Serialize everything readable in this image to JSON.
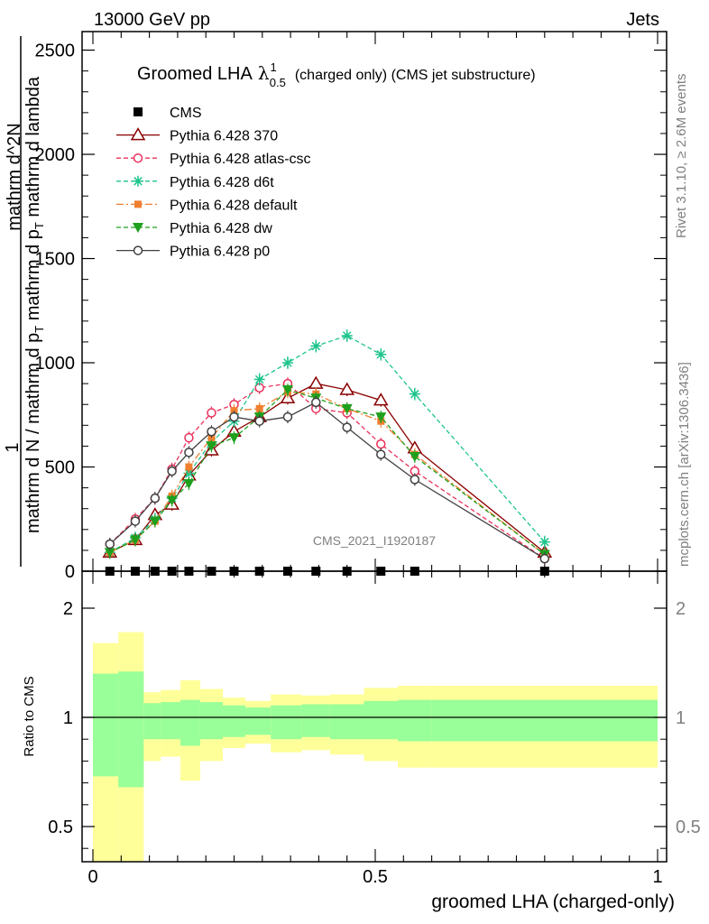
{
  "header": {
    "left": "13000 GeV pp",
    "right": "Jets"
  },
  "title": {
    "main": "Groomed LHA",
    "sup": "1",
    "sub": "0.5",
    "tail": "(charged only) (CMS jet substructure)"
  },
  "ylabel_main": {
    "lines": [
      "mathrm d N / mathrm d p_T mathrm d lambda",
      "mathrm d^2 N",
      "1"
    ],
    "text1": "mathrm d N / mathrm d p",
    "sub1": "T",
    "text2": " mathrm d p",
    "sub2": "T",
    "text3": " mathrm d lambda",
    "num": "mathrm d^2N",
    "one": "1"
  },
  "side_labels": {
    "rivet": "Rivet 3.1.10, ≥ 2.6M events",
    "mcplots": "mcplots.cern.ch [arXiv:1306.3436]"
  },
  "watermark": "CMS_2021_I1920187",
  "ratio": {
    "ylabel": "Ratio to CMS",
    "ticks": [
      "0.5",
      "1",
      "2"
    ]
  },
  "xlabel": "groomed LHA (charged-only)",
  "colors": {
    "p370": "#8b0000",
    "atlas": "#e8305a",
    "d6t": "#1ec48c",
    "default": "#f08030",
    "dw": "#1ea01e",
    "p0": "#404040",
    "band_inner": "#99ff99",
    "band_outer": "#ffff99"
  },
  "chart_data": {
    "type": "line",
    "xlim": [
      0,
      1
    ],
    "ylim": [
      0,
      2550
    ],
    "yticks": [
      0,
      500,
      1000,
      1500,
      2000,
      2500
    ],
    "xticks": [
      0,
      0.5,
      1
    ],
    "xtick_labels": [
      "0",
      "0.5",
      "1"
    ],
    "ytick_labels": [
      "0",
      "500",
      "1000",
      "1500",
      "2000",
      "2500"
    ],
    "x": [
      0.03,
      0.075,
      0.11,
      0.14,
      0.17,
      0.21,
      0.25,
      0.295,
      0.345,
      0.395,
      0.45,
      0.51,
      0.57,
      0.8
    ],
    "legend": [
      "CMS",
      "Pythia 6.428 370",
      "Pythia 6.428 atlas-csc",
      "Pythia 6.428 d6t",
      "Pythia 6.428 default",
      "Pythia 6.428 dw",
      "Pythia 6.428 p0"
    ],
    "series": [
      {
        "name": "CMS",
        "key": "cms",
        "values": [
          0,
          0,
          0,
          0,
          0,
          0,
          0,
          0,
          0,
          0,
          0,
          0,
          0,
          0
        ]
      },
      {
        "name": "Pythia 6.428 370",
        "key": "p370",
        "values": [
          90,
          150,
          270,
          320,
          460,
          580,
          670,
          740,
          830,
          900,
          870,
          820,
          590,
          90
        ]
      },
      {
        "name": "Pythia 6.428 atlas-csc",
        "key": "atlas",
        "values": [
          130,
          250,
          350,
          490,
          640,
          760,
          800,
          880,
          900,
          780,
          760,
          610,
          480,
          60
        ]
      },
      {
        "name": "Pythia 6.428 d6t",
        "key": "d6t",
        "values": [
          90,
          160,
          250,
          350,
          470,
          620,
          720,
          920,
          1000,
          1080,
          1130,
          1040,
          850,
          140
        ]
      },
      {
        "name": "Pythia 6.428 default",
        "key": "default",
        "values": [
          90,
          150,
          240,
          360,
          500,
          640,
          770,
          780,
          860,
          850,
          780,
          720,
          560,
          80
        ]
      },
      {
        "name": "Pythia 6.428 dw",
        "key": "dw",
        "values": [
          90,
          150,
          240,
          340,
          420,
          600,
          640,
          740,
          870,
          830,
          780,
          740,
          550,
          80
        ]
      },
      {
        "name": "Pythia 6.428 p0",
        "key": "p0",
        "values": [
          130,
          240,
          350,
          480,
          570,
          670,
          740,
          720,
          740,
          810,
          690,
          560,
          440,
          60
        ]
      }
    ],
    "ratio_bands": {
      "edges": [
        0,
        0.045,
        0.09,
        0.12,
        0.155,
        0.19,
        0.23,
        0.27,
        0.315,
        0.37,
        0.42,
        0.48,
        0.54,
        0.6,
        1.0
      ],
      "inner_lo": [
        0.73,
        0.68,
        0.9,
        0.9,
        0.87,
        0.9,
        0.91,
        0.92,
        0.9,
        0.91,
        0.9,
        0.9,
        0.89,
        0.89
      ],
      "inner_hi": [
        1.4,
        1.42,
        1.13,
        1.14,
        1.16,
        1.14,
        1.11,
        1.09,
        1.11,
        1.12,
        1.12,
        1.15,
        1.16,
        1.16
      ],
      "outer_lo": [
        0.33,
        0.33,
        0.8,
        0.82,
        0.71,
        0.8,
        0.86,
        0.88,
        0.84,
        0.85,
        0.83,
        0.8,
        0.77,
        0.77
      ],
      "outer_hi": [
        1.68,
        1.78,
        1.23,
        1.25,
        1.34,
        1.26,
        1.18,
        1.15,
        1.21,
        1.2,
        1.21,
        1.27,
        1.29,
        1.29
      ]
    },
    "ratio_ylim": [
      0.33,
      2.3
    ]
  }
}
